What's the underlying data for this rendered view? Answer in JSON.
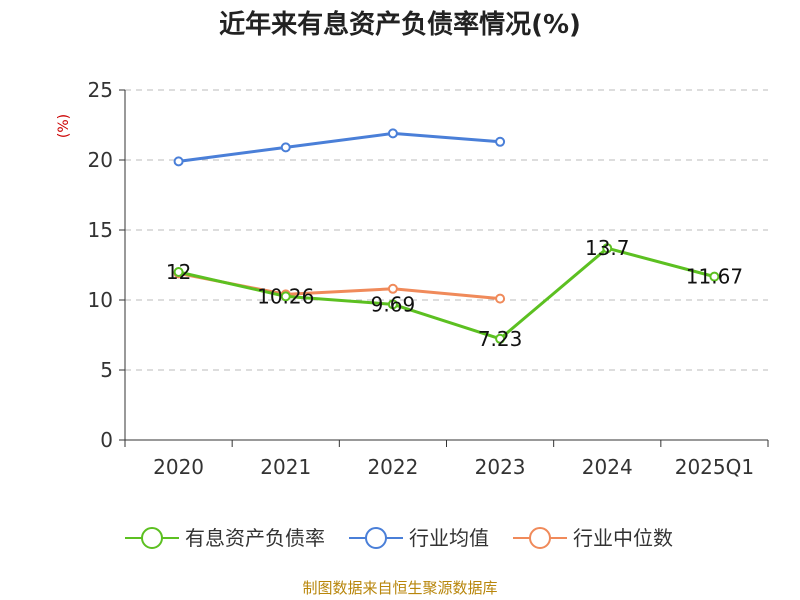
{
  "chart_data": {
    "type": "line",
    "title": "近年来有息资产负债率情况(%)",
    "ylabel": "(%)",
    "categories": [
      "2020",
      "2021",
      "2022",
      "2023",
      "2024",
      "2025Q1"
    ],
    "ylim": [
      0,
      25
    ],
    "yticks": [
      "0",
      "5",
      "10",
      "15",
      "20",
      "25"
    ],
    "grid": true,
    "legend_position": "bottom",
    "series": [
      {
        "name": "有息资产负债率",
        "color": "#5cc021",
        "values": [
          12,
          10.26,
          9.69,
          7.23,
          13.7,
          11.67
        ],
        "labels": [
          "12",
          "10.26",
          "9.69",
          "7.23",
          "13.7",
          "11.67"
        ]
      },
      {
        "name": "行业均值",
        "color": "#4a7fd8",
        "values": [
          19.9,
          20.9,
          21.9,
          21.3,
          null,
          null
        ]
      },
      {
        "name": "行业中位数",
        "color": "#f08a5a",
        "values": [
          11.9,
          10.4,
          10.8,
          10.1,
          null,
          null
        ]
      }
    ],
    "source": "制图数据来自恒生聚源数据库"
  }
}
